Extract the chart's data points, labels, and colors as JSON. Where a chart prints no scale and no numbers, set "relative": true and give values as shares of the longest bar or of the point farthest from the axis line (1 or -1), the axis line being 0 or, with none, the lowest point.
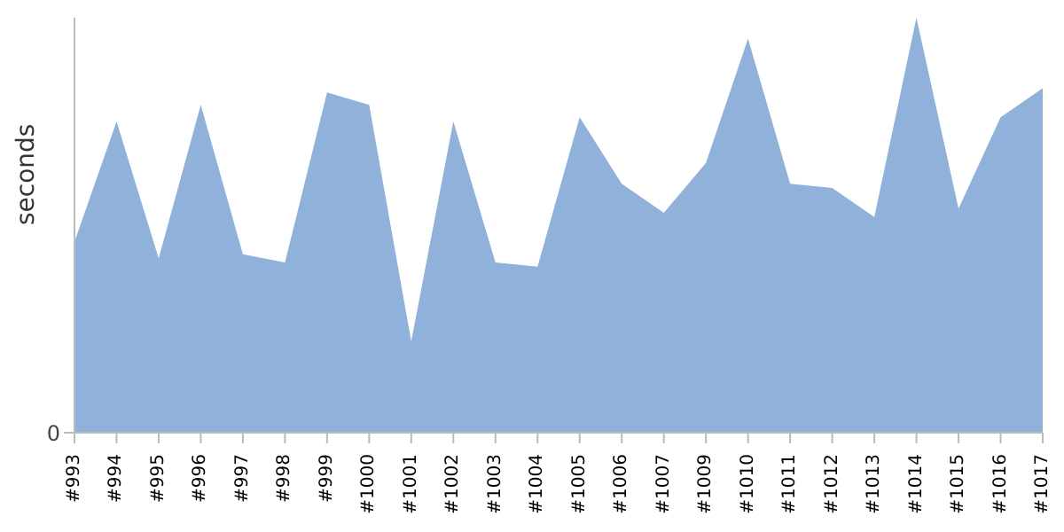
{
  "chart_data": {
    "type": "area",
    "ylabel": "seconds",
    "relative": true,
    "annotations": [
      "0"
    ],
    "color": "#8fb1da",
    "grid": false,
    "legend": false,
    "categories": [
      "#993",
      "#994",
      "#995",
      "#996",
      "#997",
      "#998",
      "#999",
      "#1000",
      "#1001",
      "#1002",
      "#1003",
      "#1004",
      "#1005",
      "#1006",
      "#1007",
      "#1009",
      "#1010",
      "#1011",
      "#1012",
      "#1013",
      "#1014",
      "#1015",
      "#1016",
      "#1017"
    ],
    "values": [
      0.46,
      0.75,
      0.42,
      0.79,
      0.43,
      0.41,
      0.82,
      0.79,
      0.22,
      0.75,
      0.41,
      0.4,
      0.76,
      0.6,
      0.53,
      0.65,
      0.95,
      0.6,
      0.59,
      0.52,
      1,
      0.54,
      0.76,
      0.83
    ]
  }
}
